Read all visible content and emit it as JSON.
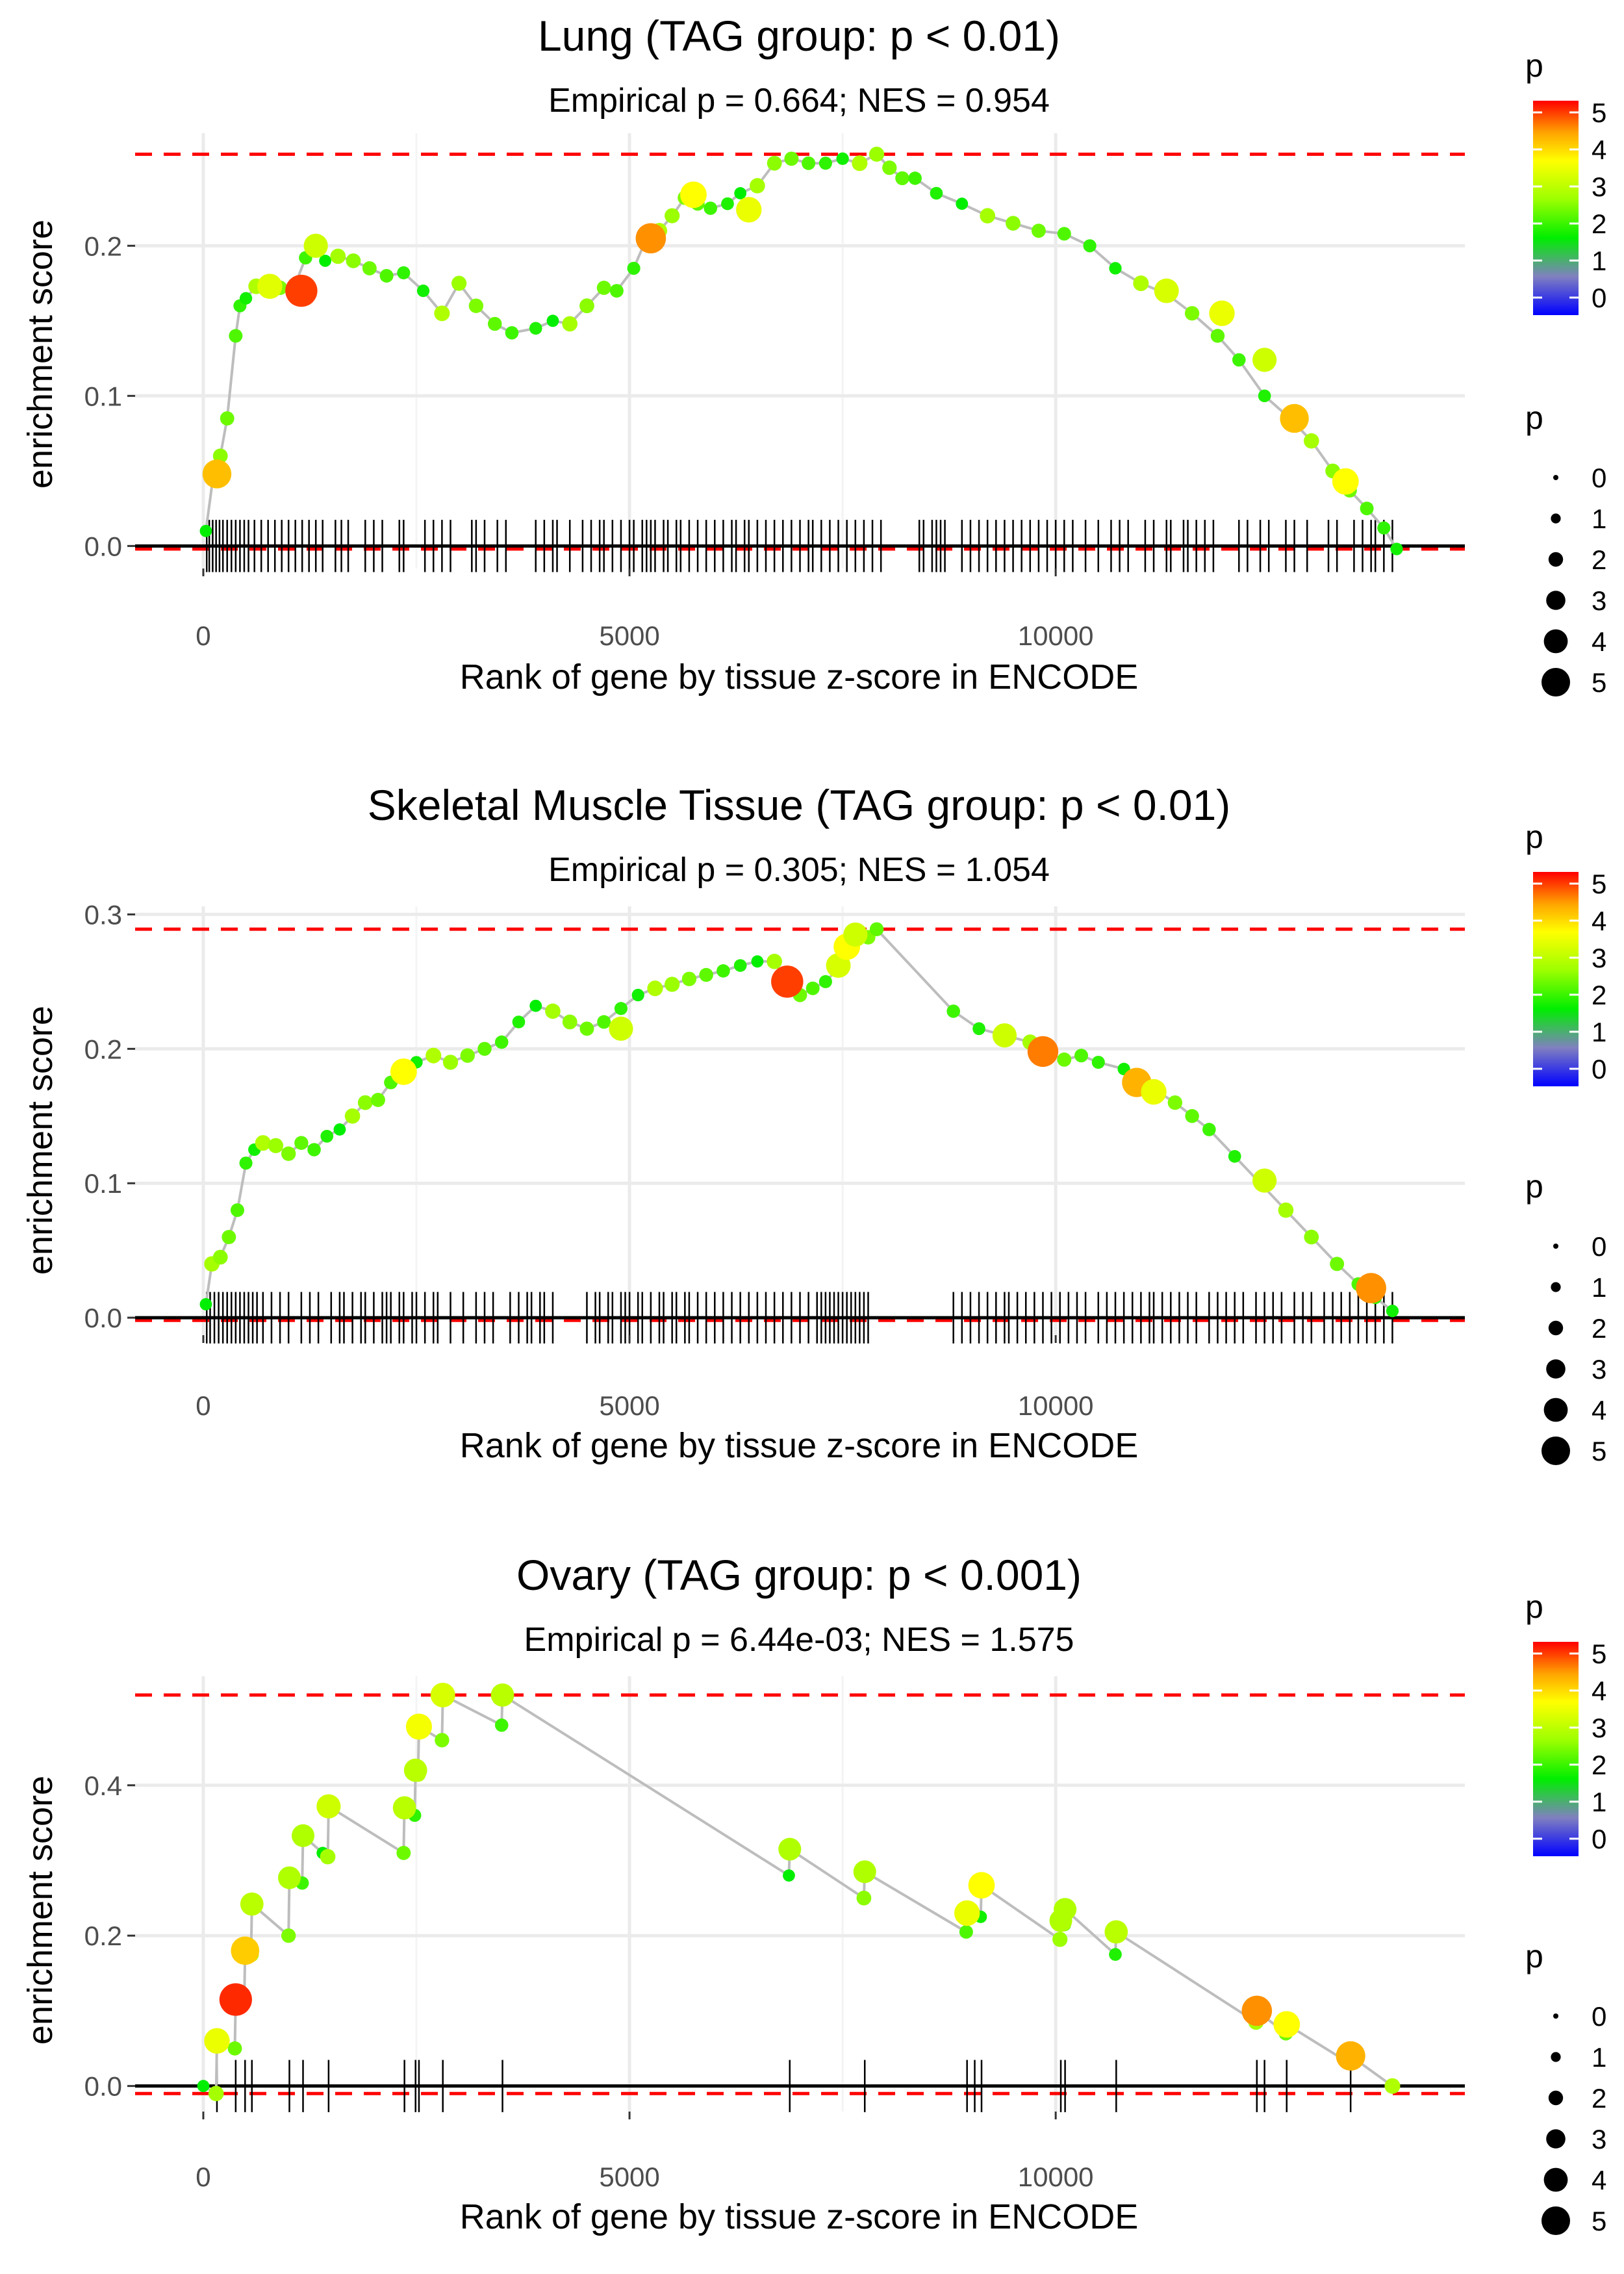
{
  "chart_data": [
    {
      "type": "line",
      "title": "Lung (TAG group: p < 0.01)",
      "subtitle": "Empirical p = 0.664; NES = 0.954",
      "xlabel": "Rank of gene by tissue z-score in ENCODE",
      "ylabel": "enrichment score",
      "xlim": [
        -800,
        14800
      ],
      "ylim": [
        -0.015,
        0.275
      ],
      "x_ticks": [
        0,
        5000,
        10000
      ],
      "x_tick_labels": [
        "0",
        "5000",
        "10000"
      ],
      "y_ticks": [
        0.0,
        0.1,
        0.2
      ],
      "y_tick_labels": [
        "0.0",
        "0.1",
        "0.2"
      ],
      "max_es": 0.261,
      "min_es": -0.002,
      "legend_color_title": "p",
      "legend_size_title": "p",
      "legend_color_labels": [
        "5",
        "4",
        "3",
        "2",
        "1",
        "0"
      ],
      "legend_size_labels": [
        "0",
        "1",
        "2",
        "3",
        "4",
        "5"
      ],
      "grid": true,
      "legend_position": "right",
      "series": [
        {
          "name": "running enrichment score",
          "x": [
            30,
            120,
            200,
            280,
            380,
            430,
            500,
            620,
            760,
            900,
            1050,
            1200,
            1320,
            1430,
            1580,
            1760,
            1950,
            2150,
            2350,
            2580,
            2800,
            3000,
            3200,
            3420,
            3620,
            3900,
            4100,
            4300,
            4500,
            4700,
            4850,
            5050,
            5200,
            5350,
            5500,
            5650,
            5800,
            5950,
            6150,
            6300,
            6500,
            6700,
            6900,
            7100,
            7300,
            7500,
            7700,
            7900,
            8050,
            8200,
            8350,
            8600,
            8900,
            9200,
            9500,
            9800,
            10100,
            10400,
            10700,
            11000,
            11300,
            11600,
            11900,
            12150,
            12450,
            12750,
            13000,
            13250,
            13450,
            13650,
            13850,
            14000
          ],
          "y": [
            0.01,
            0.048,
            0.06,
            0.085,
            0.14,
            0.16,
            0.165,
            0.173,
            0.175,
            0.172,
            0.17,
            0.192,
            0.2,
            0.19,
            0.193,
            0.19,
            0.185,
            0.18,
            0.182,
            0.17,
            0.155,
            0.175,
            0.16,
            0.148,
            0.142,
            0.145,
            0.15,
            0.148,
            0.16,
            0.172,
            0.17,
            0.185,
            0.205,
            0.21,
            0.22,
            0.232,
            0.228,
            0.225,
            0.228,
            0.235,
            0.24,
            0.255,
            0.258,
            0.255,
            0.255,
            0.258,
            0.255,
            0.261,
            0.252,
            0.245,
            0.245,
            0.235,
            0.228,
            0.22,
            0.215,
            0.21,
            0.208,
            0.2,
            0.185,
            0.175,
            0.168,
            0.155,
            0.14,
            0.124,
            0.1,
            0.085,
            0.07,
            0.05,
            0.037,
            0.025,
            0.012,
            -0.002
          ]
        }
      ],
      "highlighted_points": [
        {
          "x": 160,
          "y": 0.048,
          "p": 4.5
        },
        {
          "x": 780,
          "y": 0.173,
          "p": 3.7
        },
        {
          "x": 1150,
          "y": 0.17,
          "p": 5.2
        },
        {
          "x": 1320,
          "y": 0.2,
          "p": 3.5
        },
        {
          "x": 5250,
          "y": 0.205,
          "p": 4.8
        },
        {
          "x": 5750,
          "y": 0.234,
          "p": 4.0
        },
        {
          "x": 6400,
          "y": 0.224,
          "p": 3.8
        },
        {
          "x": 11300,
          "y": 0.17,
          "p": 3.6
        },
        {
          "x": 11950,
          "y": 0.155,
          "p": 3.8
        },
        {
          "x": 12450,
          "y": 0.124,
          "p": 3.5
        },
        {
          "x": 12800,
          "y": 0.085,
          "p": 4.5
        },
        {
          "x": 13400,
          "y": 0.043,
          "p": 4.0
        }
      ],
      "gene_hits": [
        40,
        70,
        110,
        150,
        190,
        230,
        280,
        330,
        380,
        430,
        480,
        530,
        600,
        680,
        760,
        840,
        920,
        1000,
        1080,
        1160,
        1240,
        1320,
        1400,
        1550,
        1620,
        1700,
        1900,
        2000,
        2100,
        2300,
        2350,
        2600,
        2700,
        2800,
        2900,
        3150,
        3200,
        3300,
        3450,
        3550,
        3900,
        4000,
        4100,
        4150,
        4300,
        4450,
        4550,
        4650,
        4700,
        4800,
        4900,
        5000,
        5050,
        5150,
        5200,
        5250,
        5300,
        5400,
        5450,
        5550,
        5600,
        5700,
        5800,
        5900,
        6000,
        6100,
        6200,
        6250,
        6350,
        6400,
        6500,
        6600,
        6700,
        6800,
        6900,
        7000,
        7100,
        7150,
        7250,
        7350,
        7450,
        7550,
        7650,
        7750,
        7850,
        7950,
        8400,
        8450,
        8550,
        8600,
        8650,
        8700,
        8900,
        9000,
        9100,
        9200,
        9300,
        9400,
        9500,
        9600,
        9700,
        9800,
        9900,
        10000,
        10100,
        10200,
        10350,
        10500,
        10650,
        10750,
        10850,
        11050,
        11150,
        11300,
        11350,
        11500,
        11550,
        11650,
        11750,
        11850,
        12150,
        12250,
        12400,
        12500,
        12700,
        12800,
        12950,
        13200,
        13300,
        13500,
        13600,
        13700,
        13750,
        13850,
        13950
      ]
    },
    {
      "type": "line",
      "title": "Skeletal Muscle Tissue (TAG group: p < 0.01)",
      "subtitle": "Empirical p = 0.305; NES = 1.054",
      "xlabel": "Rank of gene by tissue z-score in ENCODE",
      "ylabel": "enrichment score",
      "xlim": [
        -800,
        14800
      ],
      "ylim": [
        -0.013,
        0.306
      ],
      "x_ticks": [
        0,
        5000,
        10000
      ],
      "x_tick_labels": [
        "0",
        "5000",
        "10000"
      ],
      "y_ticks": [
        0.0,
        0.1,
        0.2,
        0.3
      ],
      "y_tick_labels": [
        "0.0",
        "0.1",
        "0.2",
        "0.3"
      ],
      "max_es": 0.289,
      "min_es": -0.002,
      "legend_color_title": "p",
      "legend_size_title": "p",
      "legend_color_labels": [
        "5",
        "4",
        "3",
        "2",
        "1",
        "0"
      ],
      "legend_size_labels": [
        "0",
        "1",
        "2",
        "3",
        "4",
        "5"
      ],
      "grid": true,
      "legend_position": "right",
      "series": [
        {
          "name": "running enrichment score",
          "x": [
            30,
            100,
            200,
            300,
            400,
            500,
            600,
            700,
            850,
            1000,
            1150,
            1300,
            1450,
            1600,
            1750,
            1900,
            2050,
            2200,
            2350,
            2500,
            2700,
            2900,
            3100,
            3300,
            3500,
            3700,
            3900,
            4100,
            4300,
            4500,
            4700,
            4900,
            5100,
            5300,
            5500,
            5700,
            5900,
            6100,
            6300,
            6500,
            6700,
            6850,
            7000,
            7150,
            7300,
            7450,
            7550,
            7650,
            7800,
            7900,
            8800,
            9100,
            9400,
            9700,
            9850,
            10100,
            10300,
            10500,
            10800,
            11000,
            11200,
            11400,
            11600,
            11800,
            12100,
            12400,
            12700,
            13000,
            13300,
            13550,
            13750,
            13950
          ],
          "y": [
            0.01,
            0.04,
            0.045,
            0.06,
            0.08,
            0.115,
            0.125,
            0.13,
            0.128,
            0.122,
            0.13,
            0.125,
            0.135,
            0.14,
            0.15,
            0.16,
            0.162,
            0.175,
            0.185,
            0.19,
            0.195,
            0.19,
            0.195,
            0.2,
            0.205,
            0.22,
            0.232,
            0.228,
            0.22,
            0.215,
            0.22,
            0.23,
            0.24,
            0.245,
            0.248,
            0.252,
            0.255,
            0.258,
            0.262,
            0.265,
            0.265,
            0.25,
            0.24,
            0.245,
            0.25,
            0.26,
            0.275,
            0.285,
            0.283,
            0.289,
            0.228,
            0.215,
            0.21,
            0.205,
            0.198,
            0.192,
            0.195,
            0.19,
            0.185,
            0.175,
            0.168,
            0.16,
            0.15,
            0.14,
            0.12,
            0.1,
            0.08,
            0.06,
            0.04,
            0.025,
            0.015,
            0.005
          ]
        }
      ],
      "highlighted_points": [
        {
          "x": 2350,
          "y": 0.183,
          "p": 4.0
        },
        {
          "x": 4900,
          "y": 0.215,
          "p": 3.5
        },
        {
          "x": 6850,
          "y": 0.25,
          "p": 5.2
        },
        {
          "x": 7450,
          "y": 0.262,
          "p": 3.6
        },
        {
          "x": 7550,
          "y": 0.276,
          "p": 4.0
        },
        {
          "x": 7650,
          "y": 0.285,
          "p": 3.5
        },
        {
          "x": 9400,
          "y": 0.21,
          "p": 3.5
        },
        {
          "x": 9850,
          "y": 0.198,
          "p": 4.9
        },
        {
          "x": 10950,
          "y": 0.175,
          "p": 4.6
        },
        {
          "x": 11150,
          "y": 0.168,
          "p": 3.8
        },
        {
          "x": 12450,
          "y": 0.102,
          "p": 3.5
        },
        {
          "x": 13700,
          "y": 0.022,
          "p": 4.8
        }
      ],
      "gene_hits": [
        40,
        80,
        130,
        180,
        230,
        280,
        330,
        380,
        430,
        480,
        530,
        580,
        630,
        700,
        800,
        900,
        1000,
        1150,
        1250,
        1350,
        1500,
        1600,
        1650,
        1750,
        1850,
        1900,
        2000,
        2100,
        2150,
        2200,
        2300,
        2350,
        2450,
        2500,
        2600,
        2700,
        2750,
        2900,
        3050,
        3200,
        3300,
        3400,
        3600,
        3700,
        3800,
        3850,
        3950,
        4000,
        4100,
        4500,
        4600,
        4650,
        4750,
        4800,
        4900,
        4950,
        5000,
        5100,
        5150,
        5250,
        5350,
        5400,
        5500,
        5550,
        5650,
        5700,
        5800,
        5900,
        6000,
        6100,
        6200,
        6300,
        6400,
        6500,
        6600,
        6700,
        6800,
        6900,
        7000,
        7100,
        7200,
        7250,
        7300,
        7350,
        7400,
        7450,
        7500,
        7550,
        7600,
        7650,
        7700,
        7750,
        7800,
        8800,
        8900,
        9000,
        9100,
        9200,
        9300,
        9400,
        9450,
        9550,
        9650,
        9750,
        9850,
        9950,
        10050,
        10150,
        10250,
        10350,
        10500,
        10600,
        10700,
        10800,
        10900,
        11000,
        11100,
        11150,
        11250,
        11350,
        11450,
        11550,
        11650,
        11800,
        11900,
        12000,
        12100,
        12200,
        12350,
        12450,
        12550,
        12650,
        12800,
        12900,
        13000,
        13150,
        13250,
        13350,
        13450,
        13550,
        13650,
        13750,
        13850,
        13950
      ]
    },
    {
      "type": "line",
      "title": "Ovary (TAG group: p < 0.001)",
      "subtitle": "Empirical p = 6.44e-03; NES = 1.575",
      "xlabel": "Rank of gene by tissue z-score in ENCODE",
      "ylabel": "enrichment score",
      "xlim": [
        -800,
        14800
      ],
      "ylim": [
        -0.034,
        0.545
      ],
      "x_ticks": [
        0,
        5000,
        10000
      ],
      "x_tick_labels": [
        "0",
        "5000",
        "10000"
      ],
      "y_ticks": [
        0.0,
        0.2,
        0.4
      ],
      "y_tick_labels": [
        "0.0",
        "0.2",
        "0.4"
      ],
      "max_es": 0.52,
      "min_es": -0.01,
      "legend_color_title": "p",
      "legend_size_title": "p",
      "legend_color_labels": [
        "5",
        "4",
        "3",
        "2",
        "1",
        "0"
      ],
      "legend_size_labels": [
        "0",
        "1",
        "2",
        "3",
        "4",
        "5"
      ],
      "grid": true,
      "legend_position": "right",
      "series": [
        {
          "name": "running enrichment score",
          "x": [
            0,
            150,
            160,
            370,
            380,
            480,
            490,
            560,
            570,
            1000,
            1010,
            1160,
            1170,
            1400,
            1460,
            1470,
            2350,
            2360,
            2480,
            2490,
            2520,
            2530,
            2800,
            2810,
            3500,
            3510,
            6870,
            6880,
            7750,
            7760,
            8950,
            8960,
            9120,
            9130,
            10050,
            10060,
            10100,
            10110,
            10700,
            10710,
            12350,
            12360,
            12700,
            12710,
            13450,
            13460,
            13950
          ],
          "y": [
            0.0,
            -0.01,
            0.06,
            0.05,
            0.115,
            0.11,
            0.18,
            0.175,
            0.242,
            0.2,
            0.277,
            0.27,
            0.333,
            0.31,
            0.305,
            0.372,
            0.31,
            0.37,
            0.36,
            0.42,
            0.415,
            0.478,
            0.46,
            0.52,
            0.48,
            0.52,
            0.28,
            0.315,
            0.25,
            0.285,
            0.205,
            0.23,
            0.225,
            0.267,
            0.195,
            0.22,
            0.215,
            0.235,
            0.175,
            0.205,
            0.085,
            0.1,
            0.07,
            0.082,
            0.03,
            0.04,
            0.0
          ]
        }
      ],
      "highlighted_points": [
        {
          "x": 160,
          "y": 0.06,
          "p": 3.8
        },
        {
          "x": 380,
          "y": 0.115,
          "p": 5.3
        },
        {
          "x": 490,
          "y": 0.18,
          "p": 4.4
        },
        {
          "x": 570,
          "y": 0.242,
          "p": 3.3
        },
        {
          "x": 1010,
          "y": 0.277,
          "p": 3.2
        },
        {
          "x": 1170,
          "y": 0.333,
          "p": 3.2
        },
        {
          "x": 1470,
          "y": 0.372,
          "p": 3.5
        },
        {
          "x": 2360,
          "y": 0.37,
          "p": 3.3
        },
        {
          "x": 2490,
          "y": 0.42,
          "p": 3.3
        },
        {
          "x": 2530,
          "y": 0.478,
          "p": 3.9
        },
        {
          "x": 2810,
          "y": 0.52,
          "p": 3.6
        },
        {
          "x": 3510,
          "y": 0.52,
          "p": 3.3
        },
        {
          "x": 6880,
          "y": 0.315,
          "p": 3.2
        },
        {
          "x": 7760,
          "y": 0.285,
          "p": 3.2
        },
        {
          "x": 8960,
          "y": 0.23,
          "p": 3.8
        },
        {
          "x": 9130,
          "y": 0.267,
          "p": 4.0
        },
        {
          "x": 10060,
          "y": 0.22,
          "p": 3.2
        },
        {
          "x": 10110,
          "y": 0.235,
          "p": 3.2
        },
        {
          "x": 10710,
          "y": 0.205,
          "p": 3.3
        },
        {
          "x": 12360,
          "y": 0.1,
          "p": 4.8
        },
        {
          "x": 12710,
          "y": 0.082,
          "p": 4.0
        },
        {
          "x": 13460,
          "y": 0.04,
          "p": 4.6
        }
      ],
      "gene_hits": [
        160,
        380,
        490,
        570,
        1010,
        1170,
        1470,
        2360,
        2490,
        2530,
        2810,
        3510,
        6880,
        7760,
        8960,
        9050,
        9130,
        10060,
        10110,
        10710,
        12360,
        12450,
        12710,
        13460
      ]
    }
  ]
}
